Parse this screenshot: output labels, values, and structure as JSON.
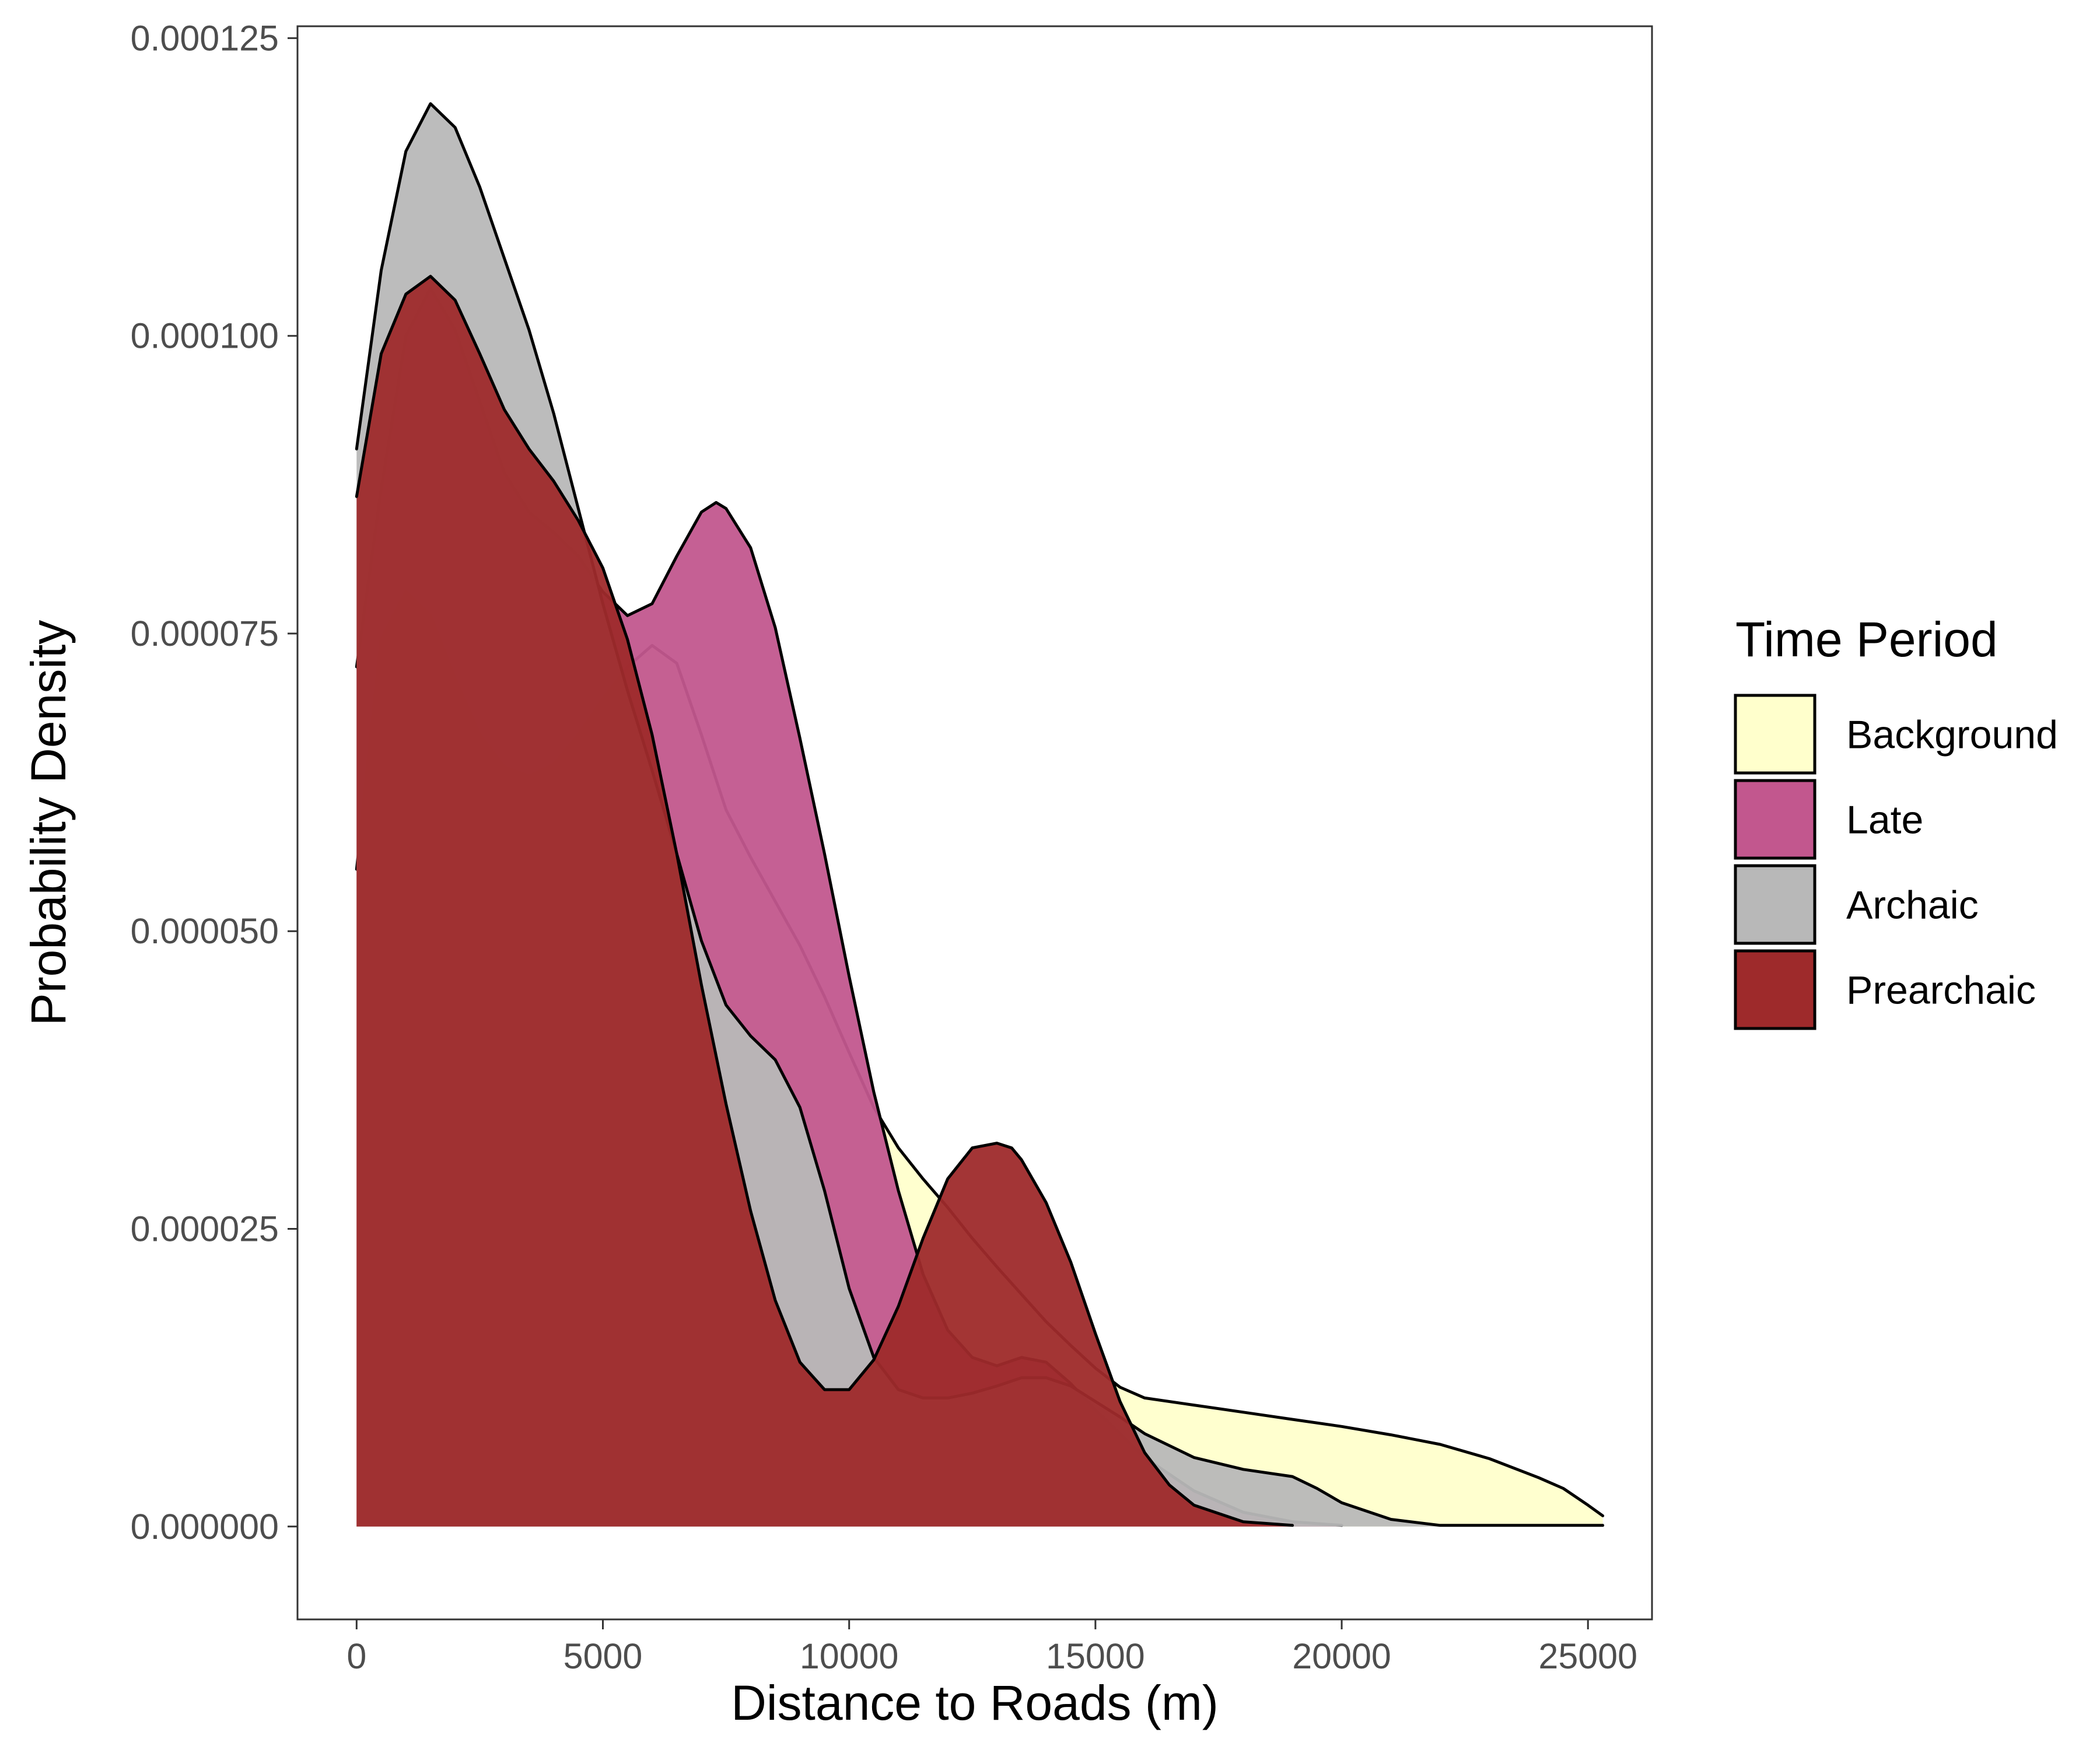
{
  "chart_data": {
    "type": "area",
    "title": "",
    "xlabel": "Distance to Roads (m)",
    "ylabel": "Probability Density",
    "xlim": [
      -1200,
      26300
    ],
    "ylim": [
      -7.8e-06,
      0.000126
    ],
    "x_ticks": [
      {
        "value": 0,
        "label": "0"
      },
      {
        "value": 5000,
        "label": "5000"
      },
      {
        "value": 10000,
        "label": "10000"
      },
      {
        "value": 15000,
        "label": "15000"
      },
      {
        "value": 20000,
        "label": "20000"
      },
      {
        "value": 25000,
        "label": "25000"
      }
    ],
    "y_ticks": [
      {
        "value": 0,
        "label": "0.000000"
      },
      {
        "value": 2.5e-05,
        "label": "0.000025"
      },
      {
        "value": 5e-05,
        "label": "0.000050"
      },
      {
        "value": 7.5e-05,
        "label": "0.000075"
      },
      {
        "value": 0.0001,
        "label": "0.000100"
      },
      {
        "value": 0.000125,
        "label": "0.000125"
      }
    ],
    "grid": false,
    "legend": {
      "title": "Time Period",
      "position": "right"
    },
    "series": [
      {
        "name": "Background",
        "color": "#FFFFCC",
        "opacity": 0.95,
        "points": [
          [
            0,
            5.52e-05
          ],
          [
            500,
            7.45e-05
          ],
          [
            1000,
            7.85e-05
          ],
          [
            1500,
            7.65e-05
          ],
          [
            2000,
            7.12e-05
          ],
          [
            2500,
            6.65e-05
          ],
          [
            3000,
            6.38e-05
          ],
          [
            3500,
            6.3e-05
          ],
          [
            4000,
            6.4e-05
          ],
          [
            4500,
            6.65e-05
          ],
          [
            5000,
            6.95e-05
          ],
          [
            5500,
            7.22e-05
          ],
          [
            6000,
            7.4e-05
          ],
          [
            6500,
            7.25e-05
          ],
          [
            7000,
            6.65e-05
          ],
          [
            7500,
            6.02e-05
          ],
          [
            8000,
            5.62e-05
          ],
          [
            8500,
            5.25e-05
          ],
          [
            9000,
            4.88e-05
          ],
          [
            9500,
            4.45e-05
          ],
          [
            10000,
            3.98e-05
          ],
          [
            10500,
            3.52e-05
          ],
          [
            11000,
            3.18e-05
          ],
          [
            11500,
            2.92e-05
          ],
          [
            12000,
            2.68e-05
          ],
          [
            12500,
            2.42e-05
          ],
          [
            13000,
            2.18e-05
          ],
          [
            13500,
            1.95e-05
          ],
          [
            14000,
            1.72e-05
          ],
          [
            14500,
            1.52e-05
          ],
          [
            15000,
            1.33e-05
          ],
          [
            15500,
            1.17e-05
          ],
          [
            16000,
            1.08e-05
          ],
          [
            17000,
            1.02e-05
          ],
          [
            18000,
            9.6e-06
          ],
          [
            19000,
            9e-06
          ],
          [
            20000,
            8.4e-06
          ],
          [
            21000,
            7.7e-06
          ],
          [
            22000,
            6.9e-06
          ],
          [
            23000,
            5.7e-06
          ],
          [
            24000,
            4.1e-06
          ],
          [
            24500,
            3.2e-06
          ],
          [
            25000,
            1.8e-06
          ],
          [
            25300,
            9e-07
          ]
        ]
      },
      {
        "name": "Late",
        "color": "#C2578E",
        "opacity": 0.95,
        "points": [
          [
            0,
            7.22e-05
          ],
          [
            500,
            8.72e-05
          ],
          [
            1000,
            0.0001
          ],
          [
            1500,
            0.000104
          ],
          [
            2000,
            0.0001005
          ],
          [
            2500,
            9.45e-05
          ],
          [
            3000,
            8.85e-05
          ],
          [
            3500,
            8.52e-05
          ],
          [
            4000,
            8.35e-05
          ],
          [
            4500,
            8.15e-05
          ],
          [
            5000,
            7.85e-05
          ],
          [
            5500,
            7.65e-05
          ],
          [
            6000,
            7.75e-05
          ],
          [
            6500,
            8.15e-05
          ],
          [
            7000,
            8.52e-05
          ],
          [
            7300,
            8.6e-05
          ],
          [
            7500,
            8.55e-05
          ],
          [
            8000,
            8.22e-05
          ],
          [
            8500,
            7.55e-05
          ],
          [
            9000,
            6.62e-05
          ],
          [
            9500,
            5.65e-05
          ],
          [
            10000,
            4.62e-05
          ],
          [
            10500,
            3.65e-05
          ],
          [
            11000,
            2.82e-05
          ],
          [
            11500,
            2.12e-05
          ],
          [
            12000,
            1.65e-05
          ],
          [
            12500,
            1.42e-05
          ],
          [
            13000,
            1.35e-05
          ],
          [
            13500,
            1.42e-05
          ],
          [
            14000,
            1.38e-05
          ],
          [
            14500,
            1.2e-05
          ],
          [
            15000,
            9.8e-06
          ],
          [
            15500,
            7.8e-06
          ],
          [
            16000,
            5.8e-06
          ],
          [
            17000,
            3e-06
          ],
          [
            18000,
            1.2e-06
          ],
          [
            19000,
            4e-07
          ],
          [
            20000,
            1e-07
          ]
        ]
      },
      {
        "name": "Archaic",
        "color": "#B8B8B8",
        "opacity": 0.95,
        "points": [
          [
            0,
            9.05e-05
          ],
          [
            500,
            0.0001055
          ],
          [
            1000,
            0.0001155
          ],
          [
            1500,
            0.0001195
          ],
          [
            2000,
            0.0001175
          ],
          [
            2500,
            0.0001125
          ],
          [
            3000,
            0.0001065
          ],
          [
            3500,
            0.0001005
          ],
          [
            4000,
            9.35e-05
          ],
          [
            4500,
            8.55e-05
          ],
          [
            5000,
            7.75e-05
          ],
          [
            5500,
            7.02e-05
          ],
          [
            6000,
            6.35e-05
          ],
          [
            6500,
            5.65e-05
          ],
          [
            7000,
            4.92e-05
          ],
          [
            7500,
            4.38e-05
          ],
          [
            8000,
            4.12e-05
          ],
          [
            8500,
            3.92e-05
          ],
          [
            9000,
            3.52e-05
          ],
          [
            9500,
            2.82e-05
          ],
          [
            10000,
            2e-05
          ],
          [
            10500,
            1.42e-05
          ],
          [
            11000,
            1.15e-05
          ],
          [
            11500,
            1.08e-05
          ],
          [
            12000,
            1.08e-05
          ],
          [
            12500,
            1.12e-05
          ],
          [
            13000,
            1.18e-05
          ],
          [
            13500,
            1.25e-05
          ],
          [
            14000,
            1.25e-05
          ],
          [
            14500,
            1.18e-05
          ],
          [
            15000,
            1.05e-05
          ],
          [
            15500,
            9.2e-06
          ],
          [
            16000,
            7.8e-06
          ],
          [
            17000,
            5.8e-06
          ],
          [
            18000,
            4.8e-06
          ],
          [
            19000,
            4.2e-06
          ],
          [
            19500,
            3.2e-06
          ],
          [
            20000,
            2e-06
          ],
          [
            21000,
            6e-07
          ],
          [
            22000,
            1e-07
          ],
          [
            23000,
            1e-07
          ],
          [
            25300,
            1e-07
          ]
        ]
      },
      {
        "name": "Prearchaic",
        "color": "#9E2A2B",
        "opacity": 0.95,
        "points": [
          [
            0,
            8.65e-05
          ],
          [
            500,
            9.85e-05
          ],
          [
            1000,
            0.0001035
          ],
          [
            1500,
            0.000105
          ],
          [
            2000,
            0.000103
          ],
          [
            2500,
            9.85e-05
          ],
          [
            3000,
            9.38e-05
          ],
          [
            3500,
            9.05e-05
          ],
          [
            4000,
            8.78e-05
          ],
          [
            4500,
            8.45e-05
          ],
          [
            5000,
            8.05e-05
          ],
          [
            5500,
            7.45e-05
          ],
          [
            6000,
            6.65e-05
          ],
          [
            6500,
            5.65e-05
          ],
          [
            7000,
            4.55e-05
          ],
          [
            7500,
            3.55e-05
          ],
          [
            8000,
            2.65e-05
          ],
          [
            8500,
            1.9e-05
          ],
          [
            9000,
            1.38e-05
          ],
          [
            9500,
            1.15e-05
          ],
          [
            10000,
            1.15e-05
          ],
          [
            10500,
            1.4e-05
          ],
          [
            11000,
            1.85e-05
          ],
          [
            11500,
            2.42e-05
          ],
          [
            12000,
            2.92e-05
          ],
          [
            12500,
            3.18e-05
          ],
          [
            13000,
            3.22e-05
          ],
          [
            13300,
            3.18e-05
          ],
          [
            13500,
            3.08e-05
          ],
          [
            14000,
            2.72e-05
          ],
          [
            14500,
            2.22e-05
          ],
          [
            15000,
            1.62e-05
          ],
          [
            15500,
            1.05e-05
          ],
          [
            16000,
            6.2e-06
          ],
          [
            16500,
            3.5e-06
          ],
          [
            17000,
            1.8e-06
          ],
          [
            18000,
            4e-07
          ],
          [
            19000,
            1e-07
          ]
        ]
      }
    ]
  }
}
